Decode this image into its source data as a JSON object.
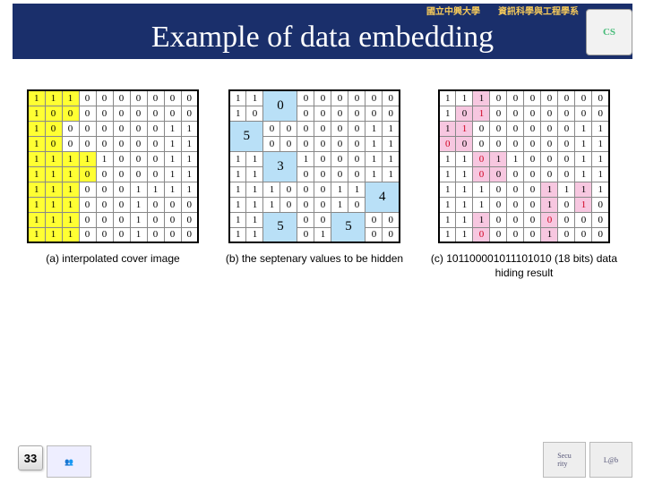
{
  "header": {
    "left_text": "國立中興大學",
    "right_text": "資訊科學與工程學系"
  },
  "title": "Example of data embedding",
  "page_number": "33",
  "grid_a": {
    "caption": "(a) interpolated cover image",
    "cells": [
      [
        [
          "1",
          "y"
        ],
        [
          "1",
          "y"
        ],
        [
          "1",
          "y"
        ],
        [
          "0",
          ""
        ],
        [
          "0",
          ""
        ],
        [
          "0",
          ""
        ],
        [
          "0",
          ""
        ],
        [
          "0",
          ""
        ],
        [
          "0",
          ""
        ],
        [
          "0",
          ""
        ]
      ],
      [
        [
          "1",
          "y"
        ],
        [
          "0",
          "y"
        ],
        [
          "0",
          "y"
        ],
        [
          "0",
          ""
        ],
        [
          "0",
          ""
        ],
        [
          "0",
          ""
        ],
        [
          "0",
          ""
        ],
        [
          "0",
          ""
        ],
        [
          "0",
          ""
        ],
        [
          "0",
          ""
        ]
      ],
      [
        [
          "1",
          "y"
        ],
        [
          "0",
          "y"
        ],
        [
          "0",
          ""
        ],
        [
          "0",
          ""
        ],
        [
          "0",
          ""
        ],
        [
          "0",
          ""
        ],
        [
          "0",
          ""
        ],
        [
          "0",
          ""
        ],
        [
          "1",
          ""
        ],
        [
          "1",
          ""
        ]
      ],
      [
        [
          "1",
          "y"
        ],
        [
          "0",
          "y"
        ],
        [
          "0",
          ""
        ],
        [
          "0",
          ""
        ],
        [
          "0",
          ""
        ],
        [
          "0",
          ""
        ],
        [
          "0",
          ""
        ],
        [
          "0",
          ""
        ],
        [
          "1",
          ""
        ],
        [
          "1",
          ""
        ]
      ],
      [
        [
          "1",
          "y"
        ],
        [
          "1",
          "y"
        ],
        [
          "1",
          "y"
        ],
        [
          "1",
          "y"
        ],
        [
          "1",
          ""
        ],
        [
          "0",
          ""
        ],
        [
          "0",
          ""
        ],
        [
          "0",
          ""
        ],
        [
          "1",
          ""
        ],
        [
          "1",
          ""
        ]
      ],
      [
        [
          "1",
          "y"
        ],
        [
          "1",
          "y"
        ],
        [
          "1",
          "y"
        ],
        [
          "0",
          "y"
        ],
        [
          "0",
          ""
        ],
        [
          "0",
          ""
        ],
        [
          "0",
          ""
        ],
        [
          "0",
          ""
        ],
        [
          "1",
          ""
        ],
        [
          "1",
          ""
        ]
      ],
      [
        [
          "1",
          "y"
        ],
        [
          "1",
          "y"
        ],
        [
          "1",
          "y"
        ],
        [
          "0",
          ""
        ],
        [
          "0",
          ""
        ],
        [
          "0",
          ""
        ],
        [
          "1",
          ""
        ],
        [
          "1",
          ""
        ],
        [
          "1",
          ""
        ],
        [
          "1",
          ""
        ]
      ],
      [
        [
          "1",
          "y"
        ],
        [
          "1",
          "y"
        ],
        [
          "1",
          "y"
        ],
        [
          "0",
          ""
        ],
        [
          "0",
          ""
        ],
        [
          "0",
          ""
        ],
        [
          "1",
          ""
        ],
        [
          "0",
          ""
        ],
        [
          "0",
          ""
        ],
        [
          "0",
          ""
        ]
      ],
      [
        [
          "1",
          "y"
        ],
        [
          "1",
          "y"
        ],
        [
          "1",
          "y"
        ],
        [
          "0",
          ""
        ],
        [
          "0",
          ""
        ],
        [
          "0",
          ""
        ],
        [
          "1",
          ""
        ],
        [
          "0",
          ""
        ],
        [
          "0",
          ""
        ],
        [
          "0",
          ""
        ]
      ],
      [
        [
          "1",
          "y"
        ],
        [
          "1",
          "y"
        ],
        [
          "1",
          "y"
        ],
        [
          "0",
          ""
        ],
        [
          "0",
          ""
        ],
        [
          "0",
          ""
        ],
        [
          "1",
          ""
        ],
        [
          "0",
          ""
        ],
        [
          "0",
          ""
        ],
        [
          "0",
          ""
        ]
      ]
    ]
  },
  "grid_b": {
    "caption": "(b) the septenary values to be hidden",
    "cells": [
      [
        [
          "1",
          ""
        ],
        [
          "1",
          ""
        ],
        [
          "0",
          "b big",
          2
        ],
        [
          "-",
          ""
        ],
        [
          "0",
          ""
        ],
        [
          "0",
          ""
        ],
        [
          "0",
          ""
        ],
        [
          "0",
          ""
        ],
        [
          "0",
          ""
        ],
        [
          "0",
          ""
        ]
      ],
      [
        [
          "1",
          ""
        ],
        [
          "0",
          ""
        ],
        [
          "-",
          ""
        ],
        [
          "-",
          ""
        ],
        [
          "0",
          ""
        ],
        [
          "0",
          ""
        ],
        [
          "0",
          ""
        ],
        [
          "0",
          ""
        ],
        [
          "0",
          ""
        ],
        [
          "0",
          ""
        ]
      ],
      [
        [
          "5",
          "b big",
          2
        ],
        [
          "-",
          ""
        ],
        [
          "0",
          ""
        ],
        [
          "0",
          ""
        ],
        [
          "0",
          ""
        ],
        [
          "0",
          ""
        ],
        [
          "0",
          ""
        ],
        [
          "0",
          ""
        ],
        [
          "1",
          ""
        ],
        [
          "1",
          ""
        ]
      ],
      [
        [
          "-",
          ""
        ],
        [
          "-",
          ""
        ],
        [
          "0",
          ""
        ],
        [
          "0",
          ""
        ],
        [
          "0",
          ""
        ],
        [
          "0",
          ""
        ],
        [
          "0",
          ""
        ],
        [
          "0",
          ""
        ],
        [
          "1",
          ""
        ],
        [
          "1",
          ""
        ]
      ],
      [
        [
          "1",
          ""
        ],
        [
          "1",
          ""
        ],
        [
          "3",
          "b big",
          2
        ],
        [
          "-",
          ""
        ],
        [
          "1",
          ""
        ],
        [
          "0",
          ""
        ],
        [
          "0",
          ""
        ],
        [
          "0",
          ""
        ],
        [
          "1",
          ""
        ],
        [
          "1",
          ""
        ]
      ],
      [
        [
          "1",
          ""
        ],
        [
          "1",
          ""
        ],
        [
          "-",
          ""
        ],
        [
          "-",
          ""
        ],
        [
          "0",
          ""
        ],
        [
          "0",
          ""
        ],
        [
          "0",
          ""
        ],
        [
          "0",
          ""
        ],
        [
          "1",
          ""
        ],
        [
          "1",
          ""
        ]
      ],
      [
        [
          "1",
          ""
        ],
        [
          "1",
          ""
        ],
        [
          "1",
          ""
        ],
        [
          "0",
          ""
        ],
        [
          "0",
          ""
        ],
        [
          "0",
          ""
        ],
        [
          "1",
          ""
        ],
        [
          "1",
          ""
        ],
        [
          "4",
          "b big",
          2
        ],
        [
          "-",
          ""
        ]
      ],
      [
        [
          "1",
          ""
        ],
        [
          "1",
          ""
        ],
        [
          "1",
          ""
        ],
        [
          "0",
          ""
        ],
        [
          "0",
          ""
        ],
        [
          "0",
          ""
        ],
        [
          "1",
          ""
        ],
        [
          "0",
          ""
        ],
        [
          "-",
          ""
        ],
        [
          "-",
          ""
        ]
      ],
      [
        [
          "1",
          ""
        ],
        [
          "1",
          ""
        ],
        [
          "5",
          "b big",
          2
        ],
        [
          "-",
          ""
        ],
        [
          "0",
          ""
        ],
        [
          "0",
          ""
        ],
        [
          "5",
          "b big",
          2
        ],
        [
          "-",
          ""
        ],
        [
          "0",
          ""
        ],
        [
          "0",
          ""
        ]
      ],
      [
        [
          "1",
          ""
        ],
        [
          "1",
          ""
        ],
        [
          "-",
          ""
        ],
        [
          "-",
          ""
        ],
        [
          "0",
          ""
        ],
        [
          "1",
          ""
        ],
        [
          "-",
          ""
        ],
        [
          "-",
          ""
        ],
        [
          "0",
          ""
        ],
        [
          "0",
          ""
        ]
      ]
    ]
  },
  "grid_c": {
    "caption": "(c) 101100001011101010 (18 bits) data hiding result",
    "cells": [
      [
        [
          "1",
          ""
        ],
        [
          "1",
          ""
        ],
        [
          "1",
          "p"
        ],
        [
          "0",
          ""
        ],
        [
          "0",
          ""
        ],
        [
          "0",
          ""
        ],
        [
          "0",
          ""
        ],
        [
          "0",
          ""
        ],
        [
          "0",
          ""
        ],
        [
          "0",
          ""
        ]
      ],
      [
        [
          "1",
          ""
        ],
        [
          "0",
          "p"
        ],
        [
          "1",
          "p r"
        ],
        [
          "0",
          ""
        ],
        [
          "0",
          ""
        ],
        [
          "0",
          ""
        ],
        [
          "0",
          ""
        ],
        [
          "0",
          ""
        ],
        [
          "0",
          ""
        ],
        [
          "0",
          ""
        ]
      ],
      [
        [
          "1",
          "p"
        ],
        [
          "1",
          "p r"
        ],
        [
          "0",
          ""
        ],
        [
          "0",
          ""
        ],
        [
          "0",
          ""
        ],
        [
          "0",
          ""
        ],
        [
          "0",
          ""
        ],
        [
          "0",
          ""
        ],
        [
          "1",
          ""
        ],
        [
          "1",
          ""
        ]
      ],
      [
        [
          "0",
          "p r"
        ],
        [
          "0",
          "p"
        ],
        [
          "0",
          ""
        ],
        [
          "0",
          ""
        ],
        [
          "0",
          ""
        ],
        [
          "0",
          ""
        ],
        [
          "0",
          ""
        ],
        [
          "0",
          ""
        ],
        [
          "1",
          ""
        ],
        [
          "1",
          ""
        ]
      ],
      [
        [
          "1",
          ""
        ],
        [
          "1",
          ""
        ],
        [
          "0",
          "p r"
        ],
        [
          "1",
          "p"
        ],
        [
          "1",
          ""
        ],
        [
          "0",
          ""
        ],
        [
          "0",
          ""
        ],
        [
          "0",
          ""
        ],
        [
          "1",
          ""
        ],
        [
          "1",
          ""
        ]
      ],
      [
        [
          "1",
          ""
        ],
        [
          "1",
          ""
        ],
        [
          "0",
          "p r"
        ],
        [
          "0",
          "p"
        ],
        [
          "0",
          ""
        ],
        [
          "0",
          ""
        ],
        [
          "0",
          ""
        ],
        [
          "0",
          ""
        ],
        [
          "1",
          ""
        ],
        [
          "1",
          ""
        ]
      ],
      [
        [
          "1",
          ""
        ],
        [
          "1",
          ""
        ],
        [
          "1",
          ""
        ],
        [
          "0",
          ""
        ],
        [
          "0",
          ""
        ],
        [
          "0",
          ""
        ],
        [
          "1",
          "p"
        ],
        [
          "1",
          ""
        ],
        [
          "1",
          "p"
        ],
        [
          "1",
          ""
        ]
      ],
      [
        [
          "1",
          ""
        ],
        [
          "1",
          ""
        ],
        [
          "1",
          ""
        ],
        [
          "0",
          ""
        ],
        [
          "0",
          ""
        ],
        [
          "0",
          ""
        ],
        [
          "1",
          "p"
        ],
        [
          "0",
          ""
        ],
        [
          "1",
          "p r"
        ],
        [
          "0",
          ""
        ]
      ],
      [
        [
          "1",
          ""
        ],
        [
          "1",
          ""
        ],
        [
          "1",
          "p"
        ],
        [
          "0",
          ""
        ],
        [
          "0",
          ""
        ],
        [
          "0",
          ""
        ],
        [
          "0",
          "p r"
        ],
        [
          "0",
          ""
        ],
        [
          "0",
          ""
        ],
        [
          "0",
          ""
        ]
      ],
      [
        [
          "1",
          ""
        ],
        [
          "1",
          ""
        ],
        [
          "0",
          "p r"
        ],
        [
          "0",
          ""
        ],
        [
          "0",
          ""
        ],
        [
          "0",
          ""
        ],
        [
          "1",
          "p"
        ],
        [
          "0",
          ""
        ],
        [
          "0",
          ""
        ],
        [
          "0",
          ""
        ]
      ]
    ]
  }
}
